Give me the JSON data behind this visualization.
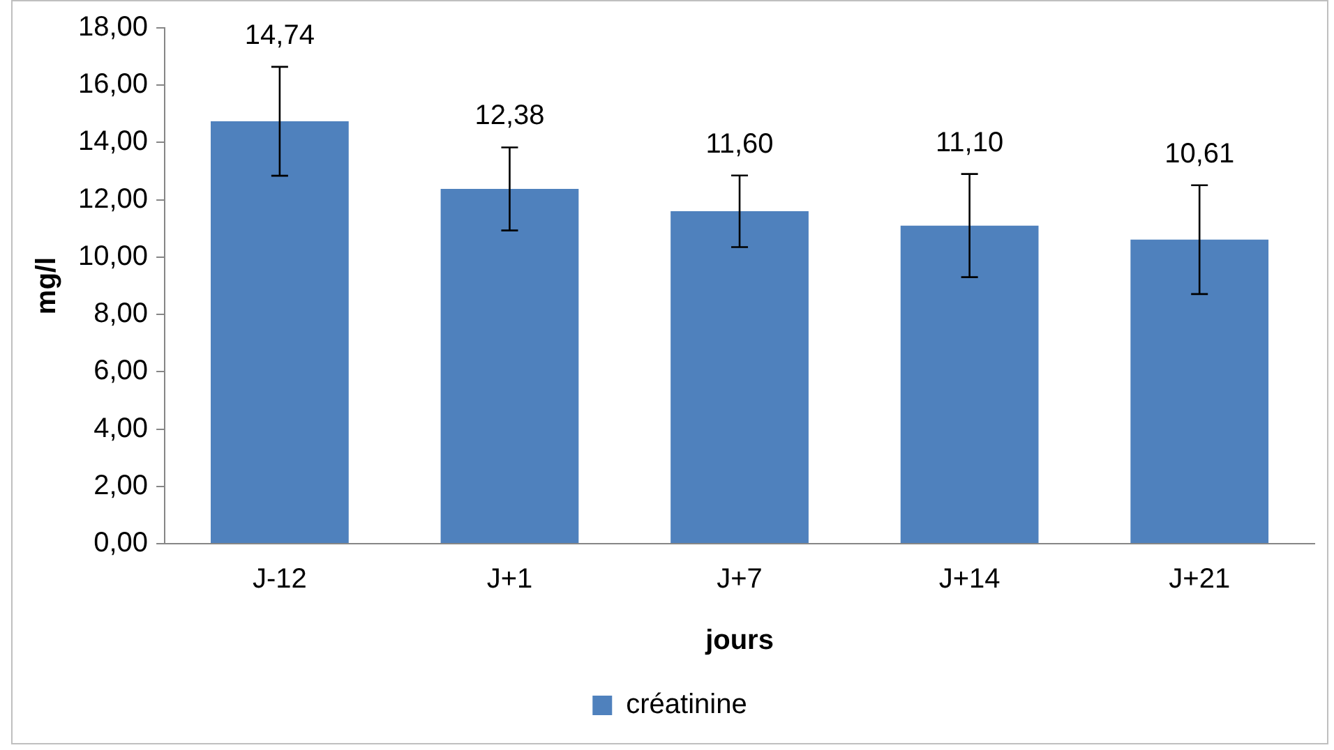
{
  "chart_data": {
    "type": "bar",
    "xlabel": "jours",
    "ylabel": "mg/l",
    "categories": [
      "J-12",
      "J+1",
      "J+7",
      "J+14",
      "J+21"
    ],
    "series": [
      {
        "name": "créatinine",
        "color": "#4f81bd",
        "values": [
          14.74,
          12.38,
          11.6,
          11.1,
          10.61
        ],
        "errors": [
          1.9,
          1.45,
          1.25,
          1.8,
          1.9
        ],
        "value_labels": [
          "14,74",
          "12,38",
          "11,60",
          "11,10",
          "10,61"
        ]
      }
    ],
    "ylim": [
      0,
      18
    ],
    "yticks": [
      {
        "value": 0,
        "label": "0,00"
      },
      {
        "value": 2,
        "label": "2,00"
      },
      {
        "value": 4,
        "label": "4,00"
      },
      {
        "value": 6,
        "label": "6,00"
      },
      {
        "value": 8,
        "label": "8,00"
      },
      {
        "value": 10,
        "label": "10,00"
      },
      {
        "value": 12,
        "label": "12,00"
      },
      {
        "value": 14,
        "label": "14,00"
      },
      {
        "value": 16,
        "label": "16,00"
      },
      {
        "value": 18,
        "label": "18,00"
      }
    ],
    "grid": false,
    "legend": "bottom"
  }
}
